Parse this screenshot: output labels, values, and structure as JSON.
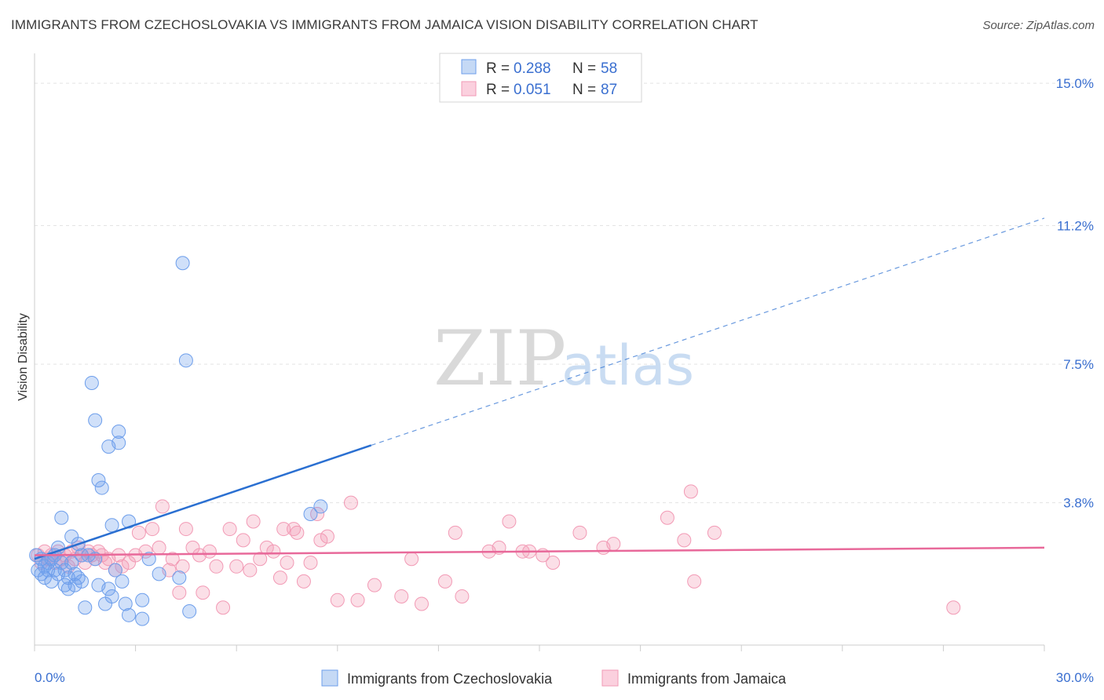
{
  "title": "IMMIGRANTS FROM CZECHOSLOVAKIA VS IMMIGRANTS FROM JAMAICA VISION DISABILITY CORRELATION CHART",
  "source": "Source: ZipAtlas.com",
  "watermark": {
    "zip": "ZIP",
    "atlas": "atlas"
  },
  "colors": {
    "blue": "#6d9eeb",
    "blue_line": "#2a6fd1",
    "pink": "#f29ab5",
    "pink_line": "#e8699a",
    "axis_label": "#3a6fd0"
  },
  "legend": {
    "r_label": "R =",
    "n_label": "N =",
    "series": [
      {
        "r": "0.288",
        "n": "58"
      },
      {
        "r": "0.051",
        "n": "87"
      }
    ]
  },
  "chart_data": {
    "type": "scatter",
    "title": "IMMIGRANTS FROM CZECHOSLOVAKIA VS IMMIGRANTS FROM JAMAICA VISION DISABILITY CORRELATION CHART",
    "xlabel": "",
    "ylabel": "Vision Disability",
    "xlim": [
      0,
      30
    ],
    "ylim": [
      0,
      15.8
    ],
    "x_tick_labels": [
      "0.0%",
      "30.0%"
    ],
    "y_ticks": [
      3.8,
      7.5,
      11.2,
      15.0
    ],
    "y_tick_labels": [
      "3.8%",
      "7.5%",
      "11.2%",
      "15.0%"
    ],
    "series": [
      {
        "name": "Immigrants from Czechoslovakia",
        "r": 0.288,
        "n": 58,
        "trend": {
          "x0": 0,
          "y0": 2.3,
          "x1": 30,
          "y1": 11.4,
          "solid_until": 10.0
        },
        "points": [
          [
            0.1,
            2.0
          ],
          [
            0.2,
            1.9
          ],
          [
            0.2,
            2.3
          ],
          [
            0.3,
            2.1
          ],
          [
            0.3,
            1.8
          ],
          [
            0.4,
            2.2
          ],
          [
            0.4,
            2.0
          ],
          [
            0.5,
            1.7
          ],
          [
            0.5,
            2.3
          ],
          [
            0.6,
            2.0
          ],
          [
            0.6,
            2.4
          ],
          [
            0.7,
            1.9
          ],
          [
            0.7,
            2.6
          ],
          [
            0.8,
            2.2
          ],
          [
            0.8,
            3.4
          ],
          [
            0.9,
            1.6
          ],
          [
            0.9,
            2.0
          ],
          [
            1.0,
            1.5
          ],
          [
            1.0,
            1.8
          ],
          [
            1.1,
            2.9
          ],
          [
            1.1,
            2.2
          ],
          [
            1.2,
            1.6
          ],
          [
            1.2,
            1.9
          ],
          [
            1.3,
            2.7
          ],
          [
            1.3,
            1.8
          ],
          [
            1.4,
            2.4
          ],
          [
            1.4,
            1.7
          ],
          [
            1.5,
            1.0
          ],
          [
            1.6,
            2.4
          ],
          [
            1.7,
            7.0
          ],
          [
            1.8,
            6.0
          ],
          [
            1.8,
            2.3
          ],
          [
            1.9,
            4.4
          ],
          [
            1.9,
            1.6
          ],
          [
            2.0,
            4.2
          ],
          [
            2.1,
            1.1
          ],
          [
            2.2,
            5.3
          ],
          [
            2.2,
            1.5
          ],
          [
            2.3,
            3.2
          ],
          [
            2.3,
            1.3
          ],
          [
            2.4,
            2.0
          ],
          [
            2.5,
            5.4
          ],
          [
            2.5,
            5.7
          ],
          [
            2.6,
            1.7
          ],
          [
            2.7,
            1.1
          ],
          [
            2.8,
            3.3
          ],
          [
            2.8,
            0.8
          ],
          [
            3.2,
            1.2
          ],
          [
            3.2,
            0.7
          ],
          [
            3.4,
            2.3
          ],
          [
            3.7,
            1.9
          ],
          [
            4.3,
            1.8
          ],
          [
            4.4,
            10.2
          ],
          [
            4.5,
            7.6
          ],
          [
            4.6,
            0.9
          ],
          [
            8.2,
            3.5
          ],
          [
            8.5,
            3.7
          ],
          [
            0.05,
            2.4
          ]
        ]
      },
      {
        "name": "Immigrants from Jamaica",
        "r": 0.051,
        "n": 87,
        "trend": {
          "x0": 0,
          "y0": 2.4,
          "x1": 30,
          "y1": 2.6,
          "solid_until": 30
        },
        "points": [
          [
            0.1,
            2.4
          ],
          [
            0.2,
            2.2
          ],
          [
            0.3,
            2.5
          ],
          [
            0.4,
            2.3
          ],
          [
            0.5,
            2.4
          ],
          [
            0.6,
            2.2
          ],
          [
            0.7,
            2.5
          ],
          [
            0.8,
            2.3
          ],
          [
            0.9,
            2.4
          ],
          [
            1.0,
            2.1
          ],
          [
            1.1,
            2.5
          ],
          [
            1.2,
            2.3
          ],
          [
            1.3,
            2.6
          ],
          [
            1.4,
            2.4
          ],
          [
            1.5,
            2.2
          ],
          [
            1.6,
            2.5
          ],
          [
            1.7,
            2.4
          ],
          [
            1.8,
            2.3
          ],
          [
            1.9,
            2.5
          ],
          [
            2.0,
            2.4
          ],
          [
            2.1,
            2.2
          ],
          [
            2.2,
            2.3
          ],
          [
            2.4,
            2.0
          ],
          [
            2.5,
            2.4
          ],
          [
            2.6,
            2.1
          ],
          [
            2.8,
            2.2
          ],
          [
            3.0,
            2.4
          ],
          [
            3.1,
            3.0
          ],
          [
            3.3,
            2.5
          ],
          [
            3.5,
            3.1
          ],
          [
            3.7,
            2.6
          ],
          [
            3.8,
            3.7
          ],
          [
            4.0,
            2.0
          ],
          [
            4.1,
            2.3
          ],
          [
            4.3,
            1.4
          ],
          [
            4.4,
            2.1
          ],
          [
            4.5,
            3.1
          ],
          [
            4.7,
            2.6
          ],
          [
            4.9,
            2.4
          ],
          [
            5.0,
            1.4
          ],
          [
            5.2,
            2.5
          ],
          [
            5.4,
            2.1
          ],
          [
            5.6,
            1.0
          ],
          [
            5.8,
            3.1
          ],
          [
            6.0,
            2.1
          ],
          [
            6.2,
            2.8
          ],
          [
            6.4,
            2.0
          ],
          [
            6.5,
            3.3
          ],
          [
            6.7,
            2.3
          ],
          [
            6.9,
            2.6
          ],
          [
            7.1,
            2.5
          ],
          [
            7.3,
            1.8
          ],
          [
            7.4,
            3.1
          ],
          [
            7.5,
            2.2
          ],
          [
            7.7,
            3.1
          ],
          [
            7.8,
            3.0
          ],
          [
            8.0,
            1.7
          ],
          [
            8.2,
            2.2
          ],
          [
            8.4,
            3.5
          ],
          [
            8.5,
            2.8
          ],
          [
            8.7,
            2.9
          ],
          [
            9.0,
            1.2
          ],
          [
            9.4,
            3.8
          ],
          [
            9.6,
            1.2
          ],
          [
            10.1,
            1.6
          ],
          [
            10.9,
            1.3
          ],
          [
            11.2,
            2.3
          ],
          [
            11.5,
            1.1
          ],
          [
            12.2,
            1.7
          ],
          [
            12.5,
            3.0
          ],
          [
            12.7,
            1.3
          ],
          [
            13.5,
            2.5
          ],
          [
            13.8,
            2.6
          ],
          [
            14.1,
            3.3
          ],
          [
            14.5,
            2.5
          ],
          [
            14.7,
            2.5
          ],
          [
            15.1,
            2.4
          ],
          [
            15.4,
            2.2
          ],
          [
            16.2,
            3.0
          ],
          [
            16.9,
            2.6
          ],
          [
            17.2,
            2.7
          ],
          [
            18.8,
            3.4
          ],
          [
            19.3,
            2.8
          ],
          [
            19.5,
            4.1
          ],
          [
            19.6,
            1.7
          ],
          [
            20.2,
            3.0
          ],
          [
            27.3,
            1.0
          ]
        ]
      }
    ]
  },
  "bottom_legend": [
    {
      "label": "Immigrants from Czechoslovakia"
    },
    {
      "label": "Immigrants from Jamaica"
    }
  ]
}
